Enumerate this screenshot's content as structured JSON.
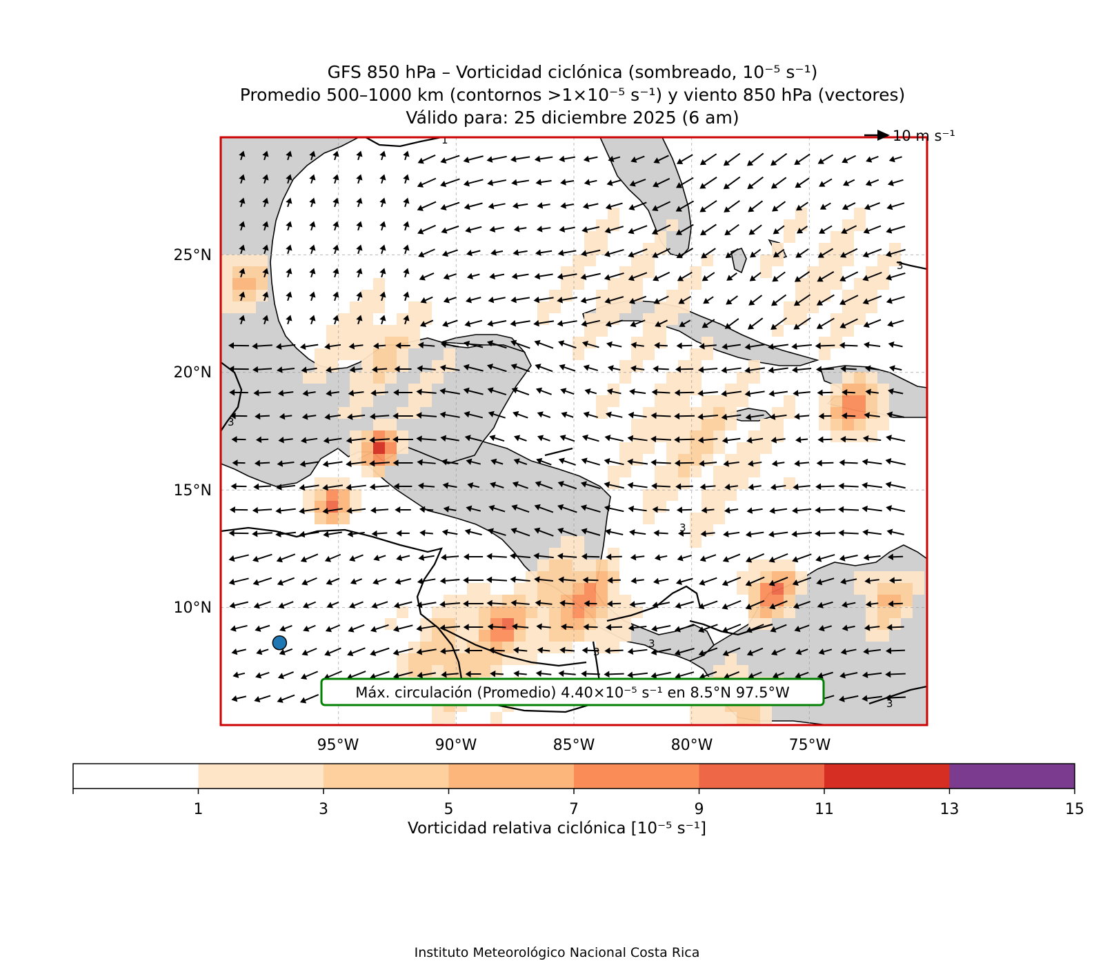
{
  "title": {
    "line1": "GFS 850 hPa – Vorticidad ciclónica (sombreado, 10⁻⁵ s⁻¹)",
    "line2": "Promedio 500–1000 km (contornos >1×10⁻⁵ s⁻¹) y viento 850 hPa (vectores)",
    "line3": "Válido para: 25 diciembre 2025 (6 am)"
  },
  "map": {
    "lon_range": [
      -100,
      -70
    ],
    "lat_range": [
      5,
      30
    ],
    "lon_ticks": [
      "95°W",
      "90°W",
      "85°W",
      "80°W",
      "75°W"
    ],
    "lat_ticks": [
      "25°N",
      "20°N",
      "15°N",
      "10°N"
    ],
    "land_color": "#d0d0d0",
    "frame_color": "#cc0000",
    "contour_labels": [
      "1",
      "3",
      "3",
      "3",
      "3",
      "3",
      "3"
    ],
    "wind_key": "10 m s⁻¹",
    "annotation": "Máx. circulación (Promedio) 4.40×10⁻⁵ s⁻¹ en 8.5°N 97.5°W",
    "annotation_border": "#008000",
    "max_point": {
      "lat": 8.5,
      "lon": -97.5,
      "color": "#1f77b4"
    }
  },
  "colorbar": {
    "ticks": [
      "1",
      "3",
      "5",
      "7",
      "9",
      "11",
      "13",
      "15"
    ],
    "colors": [
      "#ffffff",
      "#fee5c8",
      "#fdd09e",
      "#fcb57a",
      "#fa8c58",
      "#ee6848",
      "#d62e22",
      "#7b3b8f"
    ],
    "label": "Vorticidad relativa ciclónica [10⁻⁵ s⁻¹]"
  },
  "footer": "Instituto Meteorológico Nacional Costa Rica"
}
